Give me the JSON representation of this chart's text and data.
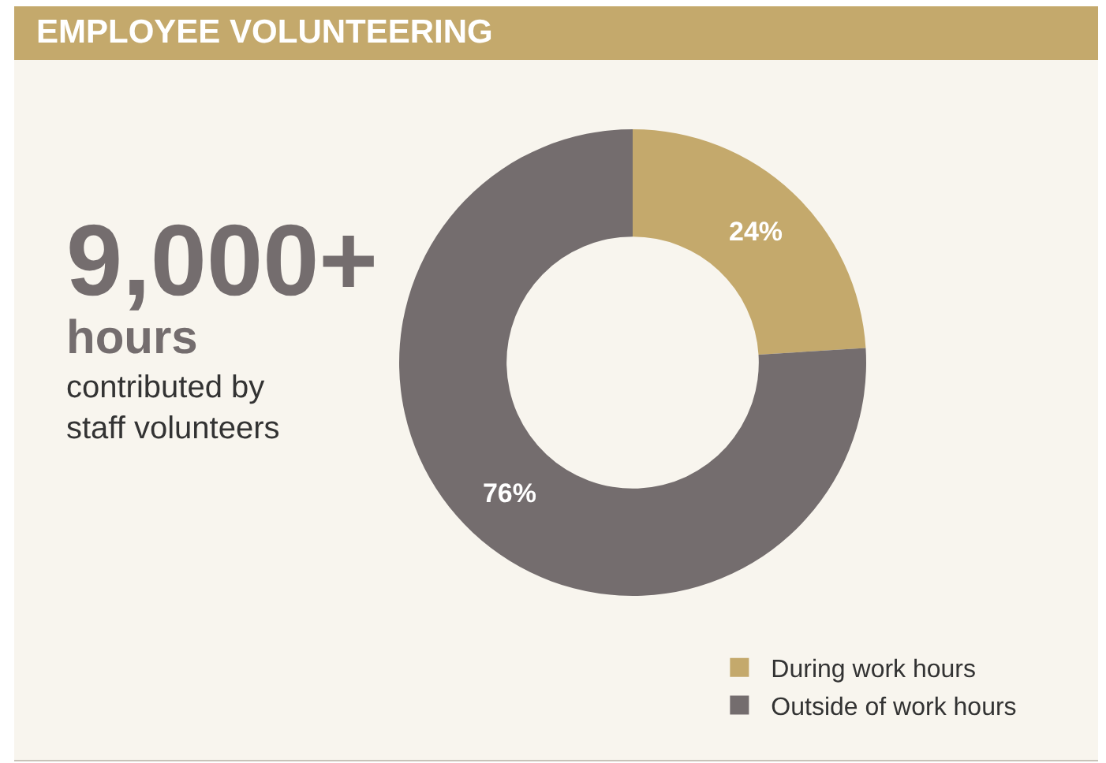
{
  "chart_data": {
    "type": "donut",
    "title": "EMPLOYEE VOLUNTEERING",
    "categories": [
      "During work hours",
      "Outside of work hours"
    ],
    "values": [
      24,
      76
    ],
    "colors": [
      "#c4a96c",
      "#746d6e"
    ],
    "value_labels": [
      "24%",
      "76%"
    ],
    "legend": "bottom right",
    "annotations": [
      "9,000+",
      "hours",
      "contributed by\nstaff volunteers"
    ]
  }
}
